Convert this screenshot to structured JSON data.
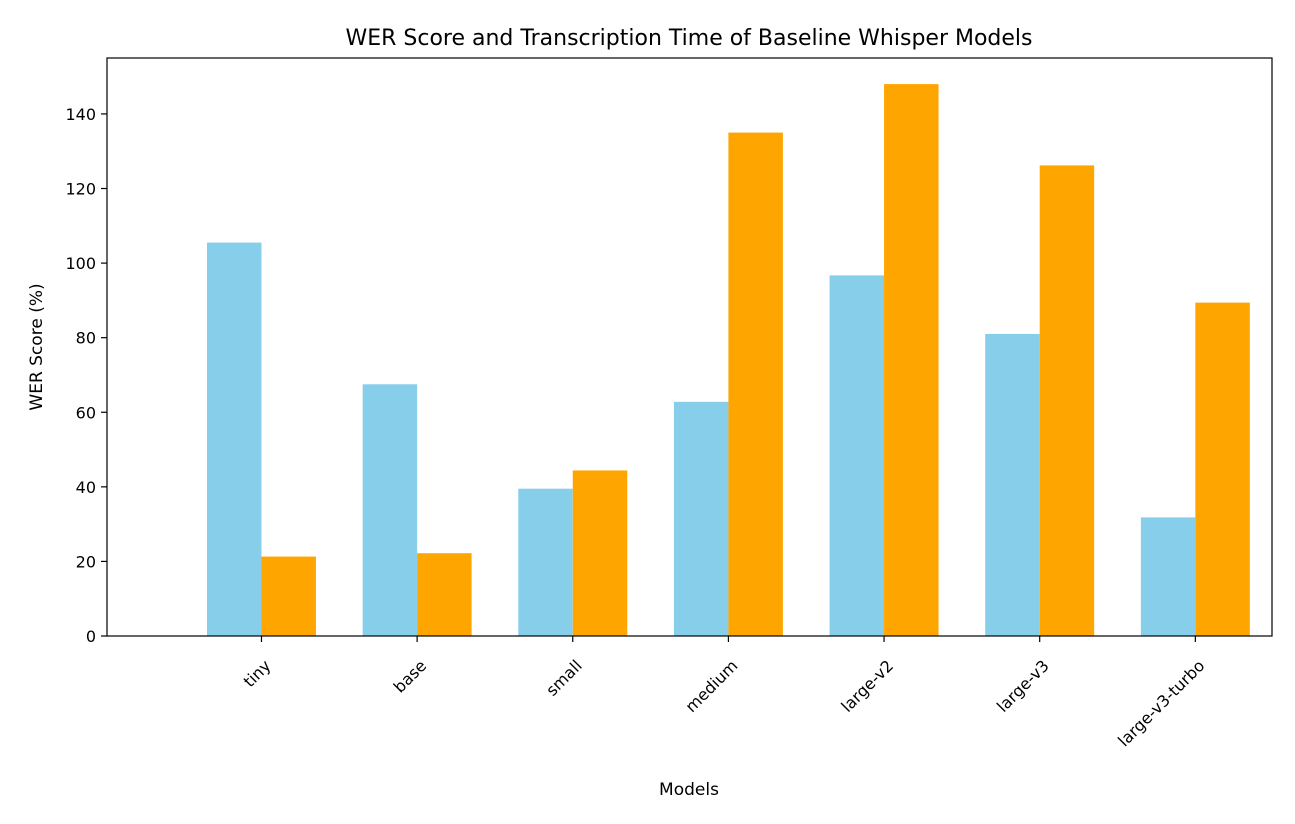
{
  "chart_data": {
    "type": "bar",
    "title": "WER Score and Transcription Time of Baseline Whisper Models",
    "xlabel": "Models",
    "ylabel": "WER Score (%)",
    "categories": [
      "tiny",
      "base",
      "small",
      "medium",
      "large-v2",
      "large-v3",
      "large-v3-turbo"
    ],
    "series": [
      {
        "color": "#87CEEB",
        "values": [
          105.5,
          67.5,
          39.5,
          62.8,
          96.7,
          81.0,
          31.8
        ]
      },
      {
        "color": "#FFA500",
        "values": [
          21.3,
          22.2,
          44.4,
          135.0,
          148.0,
          126.2,
          89.4
        ]
      }
    ],
    "ylim": [
      0,
      155
    ],
    "yticks": [
      0,
      20,
      40,
      60,
      80,
      100,
      120,
      140
    ],
    "grid": false,
    "legend": false
  }
}
